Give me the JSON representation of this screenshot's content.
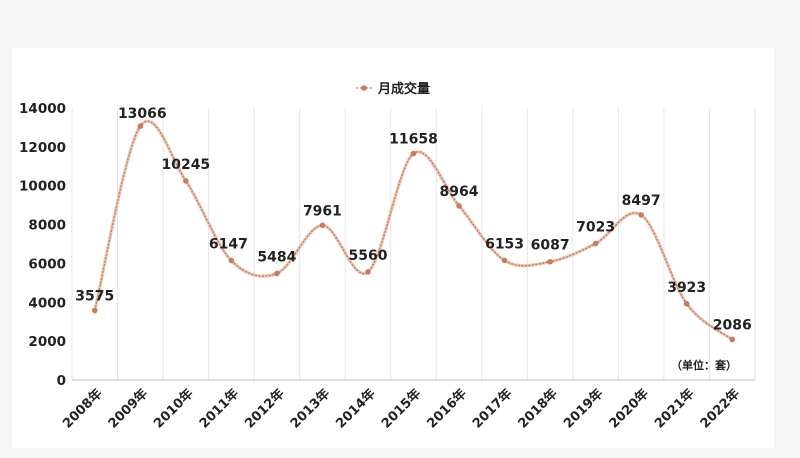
{
  "chart_data": {
    "type": "line",
    "smooth": true,
    "title": "",
    "legend": {
      "position": "top",
      "entries": [
        "月成交量"
      ]
    },
    "series": [
      {
        "name": "月成交量",
        "color": "#c97a5b",
        "values": [
          3575,
          13066,
          10245,
          6147,
          5484,
          7961,
          5560,
          11658,
          8964,
          6153,
          6087,
          7023,
          8497,
          3923,
          2086
        ]
      }
    ],
    "categories": [
      "2008年",
      "2009年",
      "2010年",
      "2011年",
      "2012年",
      "2013年",
      "2014年",
      "2015年",
      "2016年",
      "2017年",
      "2018年",
      "2019年",
      "2020年",
      "2021年",
      "2022年"
    ],
    "ylim": [
      0,
      14000
    ],
    "yticks": [
      "0",
      "2000",
      "4000",
      "6000",
      "8000",
      "10000",
      "12000",
      "14000"
    ],
    "data_labels": [
      "3575",
      "13066",
      "10245",
      "6147",
      "5484",
      "7961",
      "5560",
      "11658",
      "8964",
      "6153",
      "6087",
      "7023",
      "8497",
      "3923",
      "2086"
    ],
    "unit_note": "（单位：套）",
    "grid": {
      "horizontal": false,
      "vertical": true,
      "color": "#e6e6e6"
    },
    "axis_color": "#bfbfbf"
  }
}
